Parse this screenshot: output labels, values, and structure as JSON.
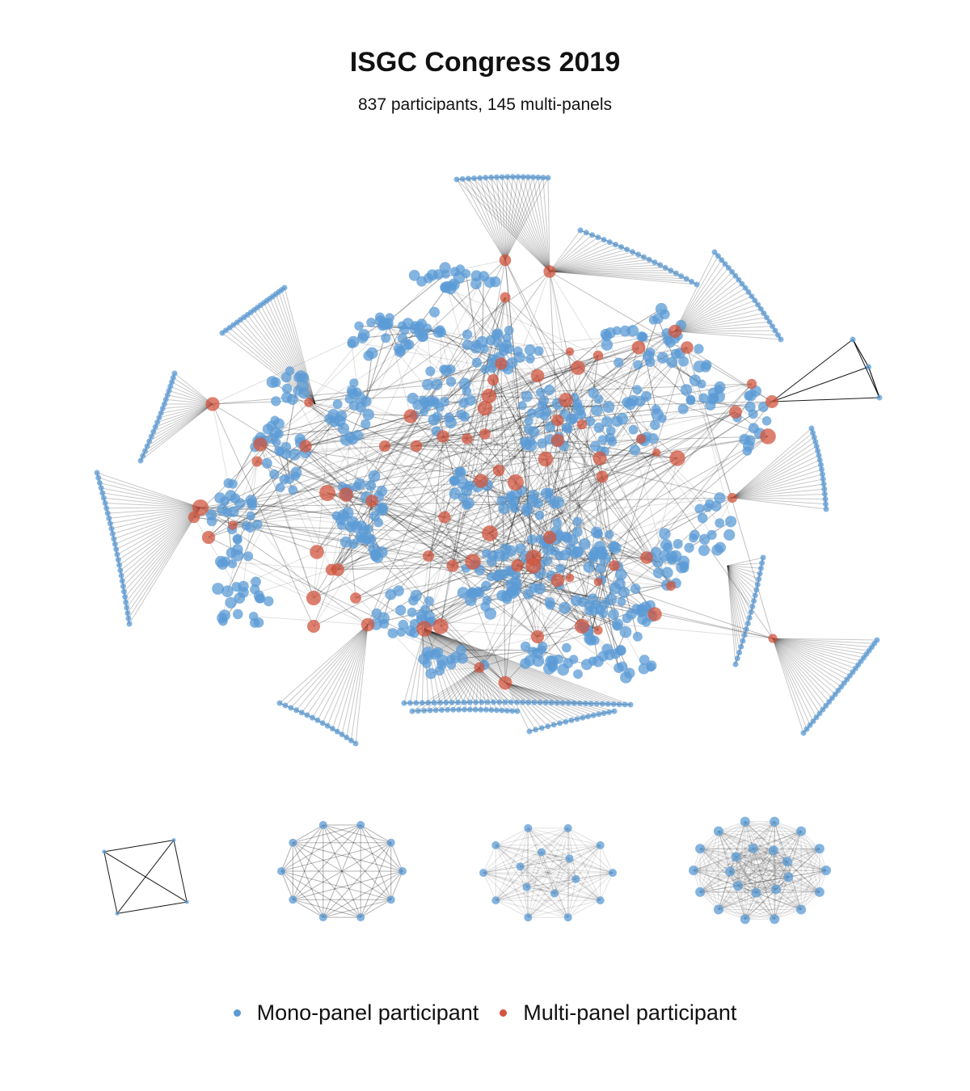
{
  "title": "ISGC Congress 2019",
  "subtitle": "837 participants, 145 multi-panels",
  "colors": {
    "mono": "#5b9bd5",
    "multi": "#d2553f",
    "edge": "#000000",
    "background": "#ffffff"
  },
  "legend": [
    {
      "label": "Mono-panel participant",
      "color": "#5b9bd5"
    },
    {
      "label": "Multi-panel participant",
      "color": "#d2553f"
    }
  ],
  "components": {
    "main": {
      "node_type": "mixed"
    },
    "small": [
      {
        "nodes": 4,
        "edges": "complete"
      },
      {
        "nodes": 10,
        "edges": "complete"
      },
      {
        "nodes": 16,
        "edges": "complete"
      },
      {
        "nodes": 23,
        "edges": "complete"
      }
    ]
  }
}
